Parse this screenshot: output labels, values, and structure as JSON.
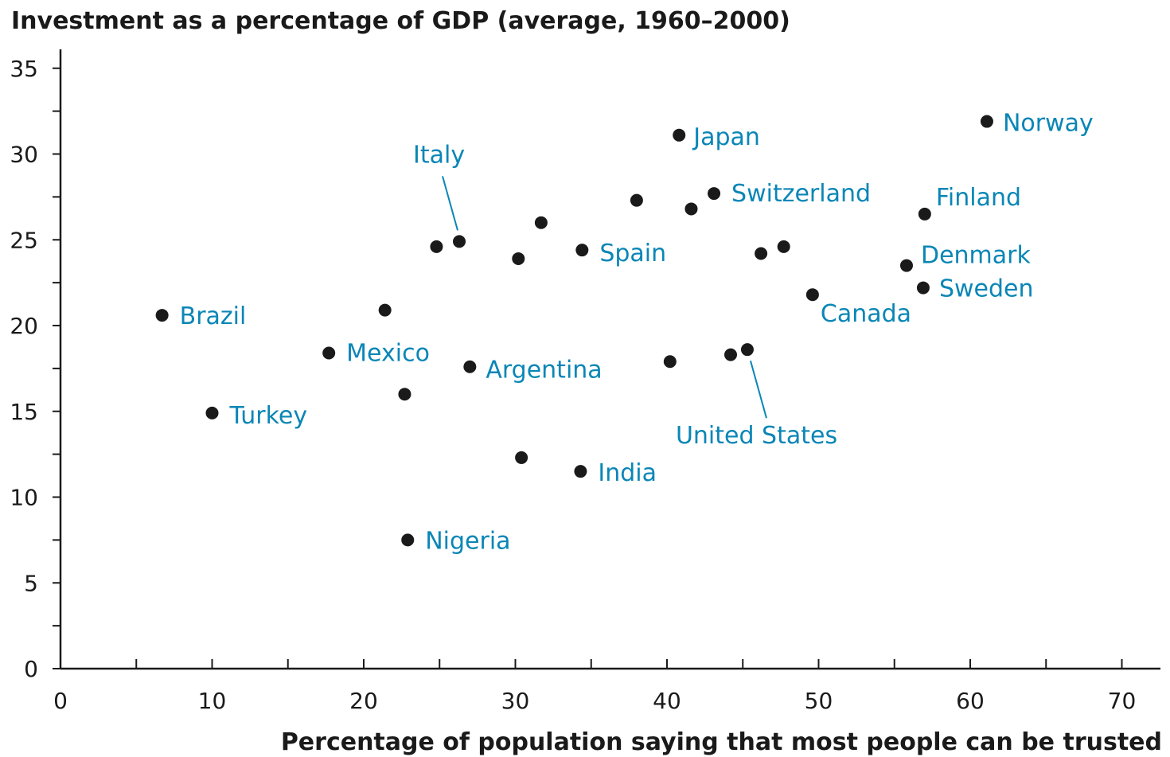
{
  "chart_data": {
    "type": "scatter",
    "title": "Investment as a percentage of GDP (average, 1960–2000)",
    "xlabel": "Percentage of population saying that most people can be trusted",
    "ylabel": "",
    "xlim": [
      0,
      72
    ],
    "ylim": [
      0,
      36
    ],
    "x_ticks": [
      0,
      10,
      20,
      30,
      40,
      50,
      60,
      70
    ],
    "y_ticks": [
      0,
      5,
      10,
      15,
      20,
      25,
      30,
      35
    ],
    "grid": false,
    "points": [
      {
        "x": 6.7,
        "y": 20.6,
        "label": "Brazil"
      },
      {
        "x": 10.0,
        "y": 14.9,
        "label": "Turkey"
      },
      {
        "x": 17.7,
        "y": 18.4,
        "label": "Mexico"
      },
      {
        "x": 21.4,
        "y": 20.9,
        "label": ""
      },
      {
        "x": 22.7,
        "y": 16.0,
        "label": ""
      },
      {
        "x": 22.9,
        "y": 7.5,
        "label": "Nigeria"
      },
      {
        "x": 24.8,
        "y": 24.6,
        "label": ""
      },
      {
        "x": 26.3,
        "y": 24.9,
        "label": "Italy"
      },
      {
        "x": 27.0,
        "y": 17.6,
        "label": "Argentina"
      },
      {
        "x": 30.2,
        "y": 23.9,
        "label": ""
      },
      {
        "x": 30.4,
        "y": 12.3,
        "label": ""
      },
      {
        "x": 31.7,
        "y": 26.0,
        "label": ""
      },
      {
        "x": 34.3,
        "y": 11.5,
        "label": "India"
      },
      {
        "x": 34.4,
        "y": 24.4,
        "label": "Spain"
      },
      {
        "x": 38.0,
        "y": 27.3,
        "label": ""
      },
      {
        "x": 40.2,
        "y": 17.9,
        "label": ""
      },
      {
        "x": 40.8,
        "y": 31.1,
        "label": "Japan"
      },
      {
        "x": 41.6,
        "y": 26.8,
        "label": ""
      },
      {
        "x": 43.1,
        "y": 27.7,
        "label": "Switzerland"
      },
      {
        "x": 44.2,
        "y": 18.3,
        "label": ""
      },
      {
        "x": 45.3,
        "y": 18.6,
        "label": "United States"
      },
      {
        "x": 46.2,
        "y": 24.2,
        "label": ""
      },
      {
        "x": 47.7,
        "y": 24.6,
        "label": ""
      },
      {
        "x": 49.6,
        "y": 21.8,
        "label": "Canada"
      },
      {
        "x": 55.8,
        "y": 23.5,
        "label": "Denmark"
      },
      {
        "x": 56.9,
        "y": 22.2,
        "label": "Sweden"
      },
      {
        "x": 57.0,
        "y": 26.5,
        "label": "Finland"
      },
      {
        "x": 61.1,
        "y": 31.9,
        "label": "Norway"
      }
    ]
  }
}
